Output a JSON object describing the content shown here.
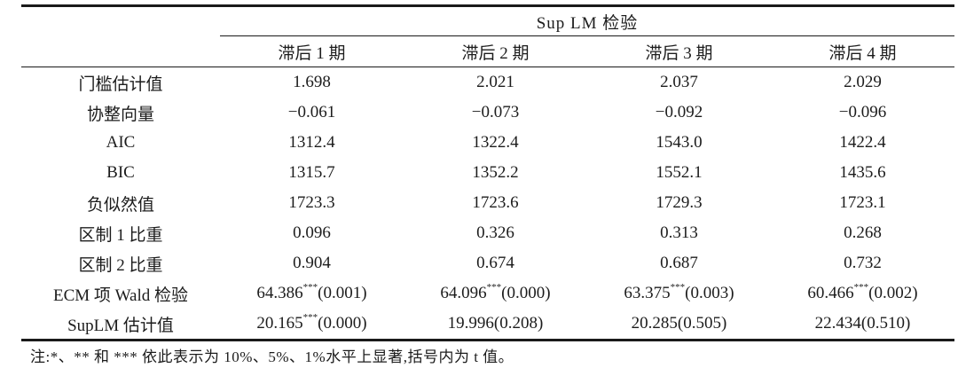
{
  "table": {
    "group_header": "Sup LM 检验",
    "row_header_blank": "",
    "col_headers": [
      "滞后 1 期",
      "滞后 2 期",
      "滞后 3 期",
      "滞后 4 期"
    ],
    "rows": [
      {
        "label": "门槛估计值",
        "cells": [
          "1.698",
          "2.021",
          "2.037",
          "2.029"
        ]
      },
      {
        "label": "协整向量",
        "cells": [
          "−0.061",
          "−0.073",
          "−0.092",
          "−0.096"
        ]
      },
      {
        "label": "AIC",
        "cells": [
          "1312.4",
          "1322.4",
          "1543.0",
          "1422.4"
        ]
      },
      {
        "label": "BIC",
        "cells": [
          "1315.7",
          "1352.2",
          "1552.1",
          "1435.6"
        ]
      },
      {
        "label": "负似然值",
        "cells": [
          "1723.3",
          "1723.6",
          "1729.3",
          "1723.1"
        ]
      },
      {
        "label": "区制 1 比重",
        "cells": [
          "0.096",
          "0.326",
          "0.313",
          "0.268"
        ]
      },
      {
        "label": "区制 2 比重",
        "cells": [
          "0.904",
          "0.674",
          "0.687",
          "0.732"
        ]
      },
      {
        "label": "ECM 项 Wald 检验",
        "cells": [
          {
            "v": "64.386",
            "sup": "***",
            "p": "(0.001)"
          },
          {
            "v": "64.096",
            "sup": "***",
            "p": "(0.000)"
          },
          {
            "v": "63.375",
            "sup": "***",
            "p": "(0.003)"
          },
          {
            "v": "60.466",
            "sup": "***",
            "p": "(0.002)"
          }
        ]
      },
      {
        "label": "SupLM 估计值",
        "cells": [
          {
            "v": "20.165",
            "sup": "***",
            "p": "(0.000)"
          },
          {
            "v": "19.996",
            "sup": "",
            "p": "(0.208)"
          },
          {
            "v": "20.285",
            "sup": "",
            "p": "(0.505)"
          },
          {
            "v": "22.434",
            "sup": "",
            "p": "(0.510)"
          }
        ]
      }
    ],
    "note": "注:*、** 和 *** 依此表示为 10%、5%、1%水平上显著,括号内为 t 值。",
    "colors": {
      "rule": "#1a1a1a",
      "text": "#1c1c1c",
      "background": "#ffffff"
    }
  }
}
